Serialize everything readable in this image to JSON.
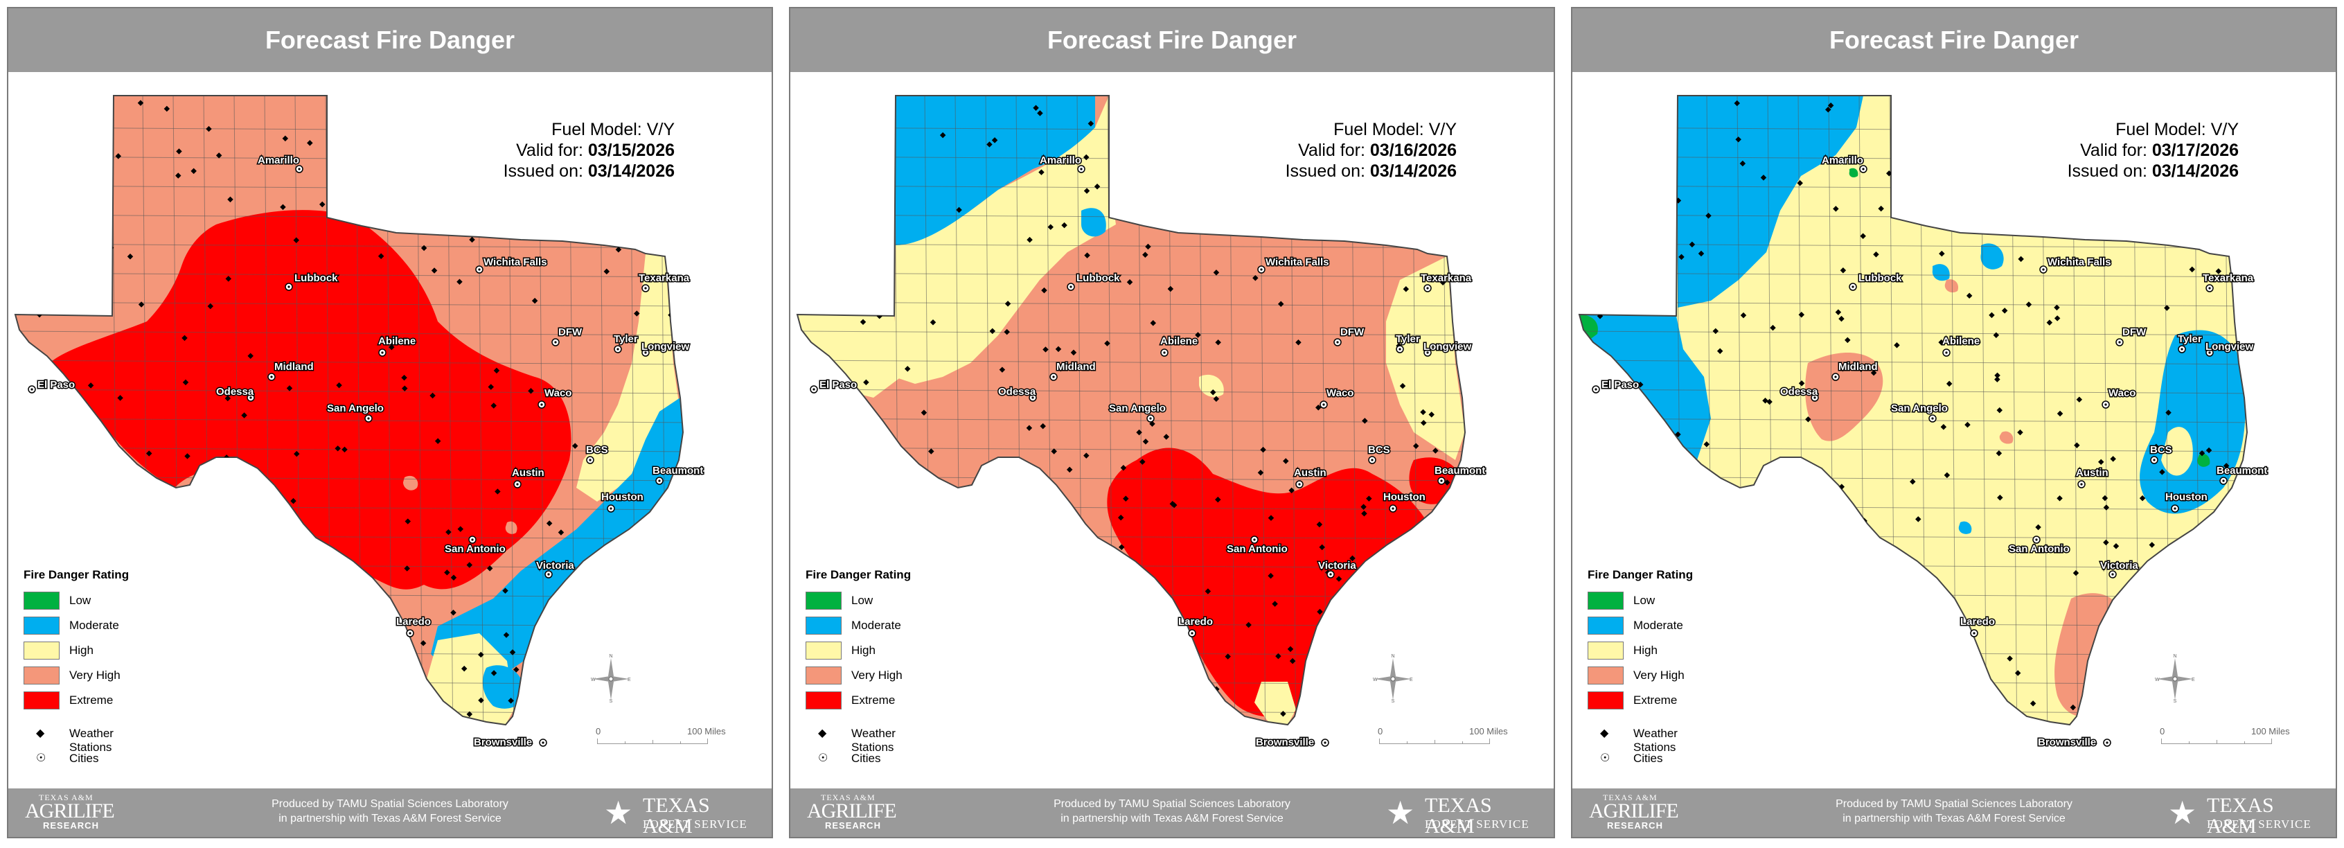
{
  "panels": [
    {
      "title": "Forecast Fire Danger",
      "fuel_model_label": "Fuel Model:",
      "fuel_model_value": "V/Y",
      "valid_label": "Valid for:",
      "valid_date": "03/15/2026",
      "issued_label": "Issued on:",
      "issued_date": "03/14/2026",
      "dominant_rating": "Extreme"
    },
    {
      "title": "Forecast Fire Danger",
      "fuel_model_label": "Fuel Model:",
      "fuel_model_value": "V/Y",
      "valid_label": "Valid for:",
      "valid_date": "03/16/2026",
      "issued_label": "Issued on:",
      "issued_date": "03/14/2026",
      "dominant_rating": "Very High"
    },
    {
      "title": "Forecast Fire Danger",
      "fuel_model_label": "Fuel Model:",
      "fuel_model_value": "V/Y",
      "valid_label": "Valid for:",
      "valid_date": "03/17/2026",
      "issued_label": "Issued on:",
      "issued_date": "03/14/2026",
      "dominant_rating": "High"
    }
  ],
  "legend": {
    "title": "Fire Danger Rating",
    "items": [
      {
        "label": "Low",
        "color": "#00b140"
      },
      {
        "label": "Moderate",
        "color": "#00aeef"
      },
      {
        "label": "High",
        "color": "#fff8a8"
      },
      {
        "label": "Very High",
        "color": "#f4977a"
      },
      {
        "label": "Extreme",
        "color": "#ff0000"
      }
    ],
    "stations_label": "Weather Stations",
    "cities_label": "Cities"
  },
  "cities": [
    "Amarillo",
    "Lubbock",
    "Wichita Falls",
    "Texarkana",
    "DFW",
    "Tyler",
    "Longview",
    "El Paso",
    "Midland",
    "Abilene",
    "Odessa",
    "San Angelo",
    "Waco",
    "BCS",
    "Austin",
    "Beaumont",
    "Houston",
    "San Antonio",
    "Victoria",
    "Laredo",
    "Brownsville"
  ],
  "compass_letters": {
    "n": "N",
    "s": "S",
    "e": "E",
    "w": "W"
  },
  "scale": {
    "zero": "0",
    "label": "100 Miles"
  },
  "footer": {
    "line1": "Produced by TAMU Spatial Sciences Laboratory",
    "line2": "in partnership with Texas A&M Forest Service",
    "agrilife_top": "TEXAS A&M",
    "agrilife_main": "AGRILIFE",
    "agrilife_sub": "RESEARCH",
    "tfs_main": "TEXAS A&M",
    "tfs_sub": "FOREST SERVICE"
  }
}
